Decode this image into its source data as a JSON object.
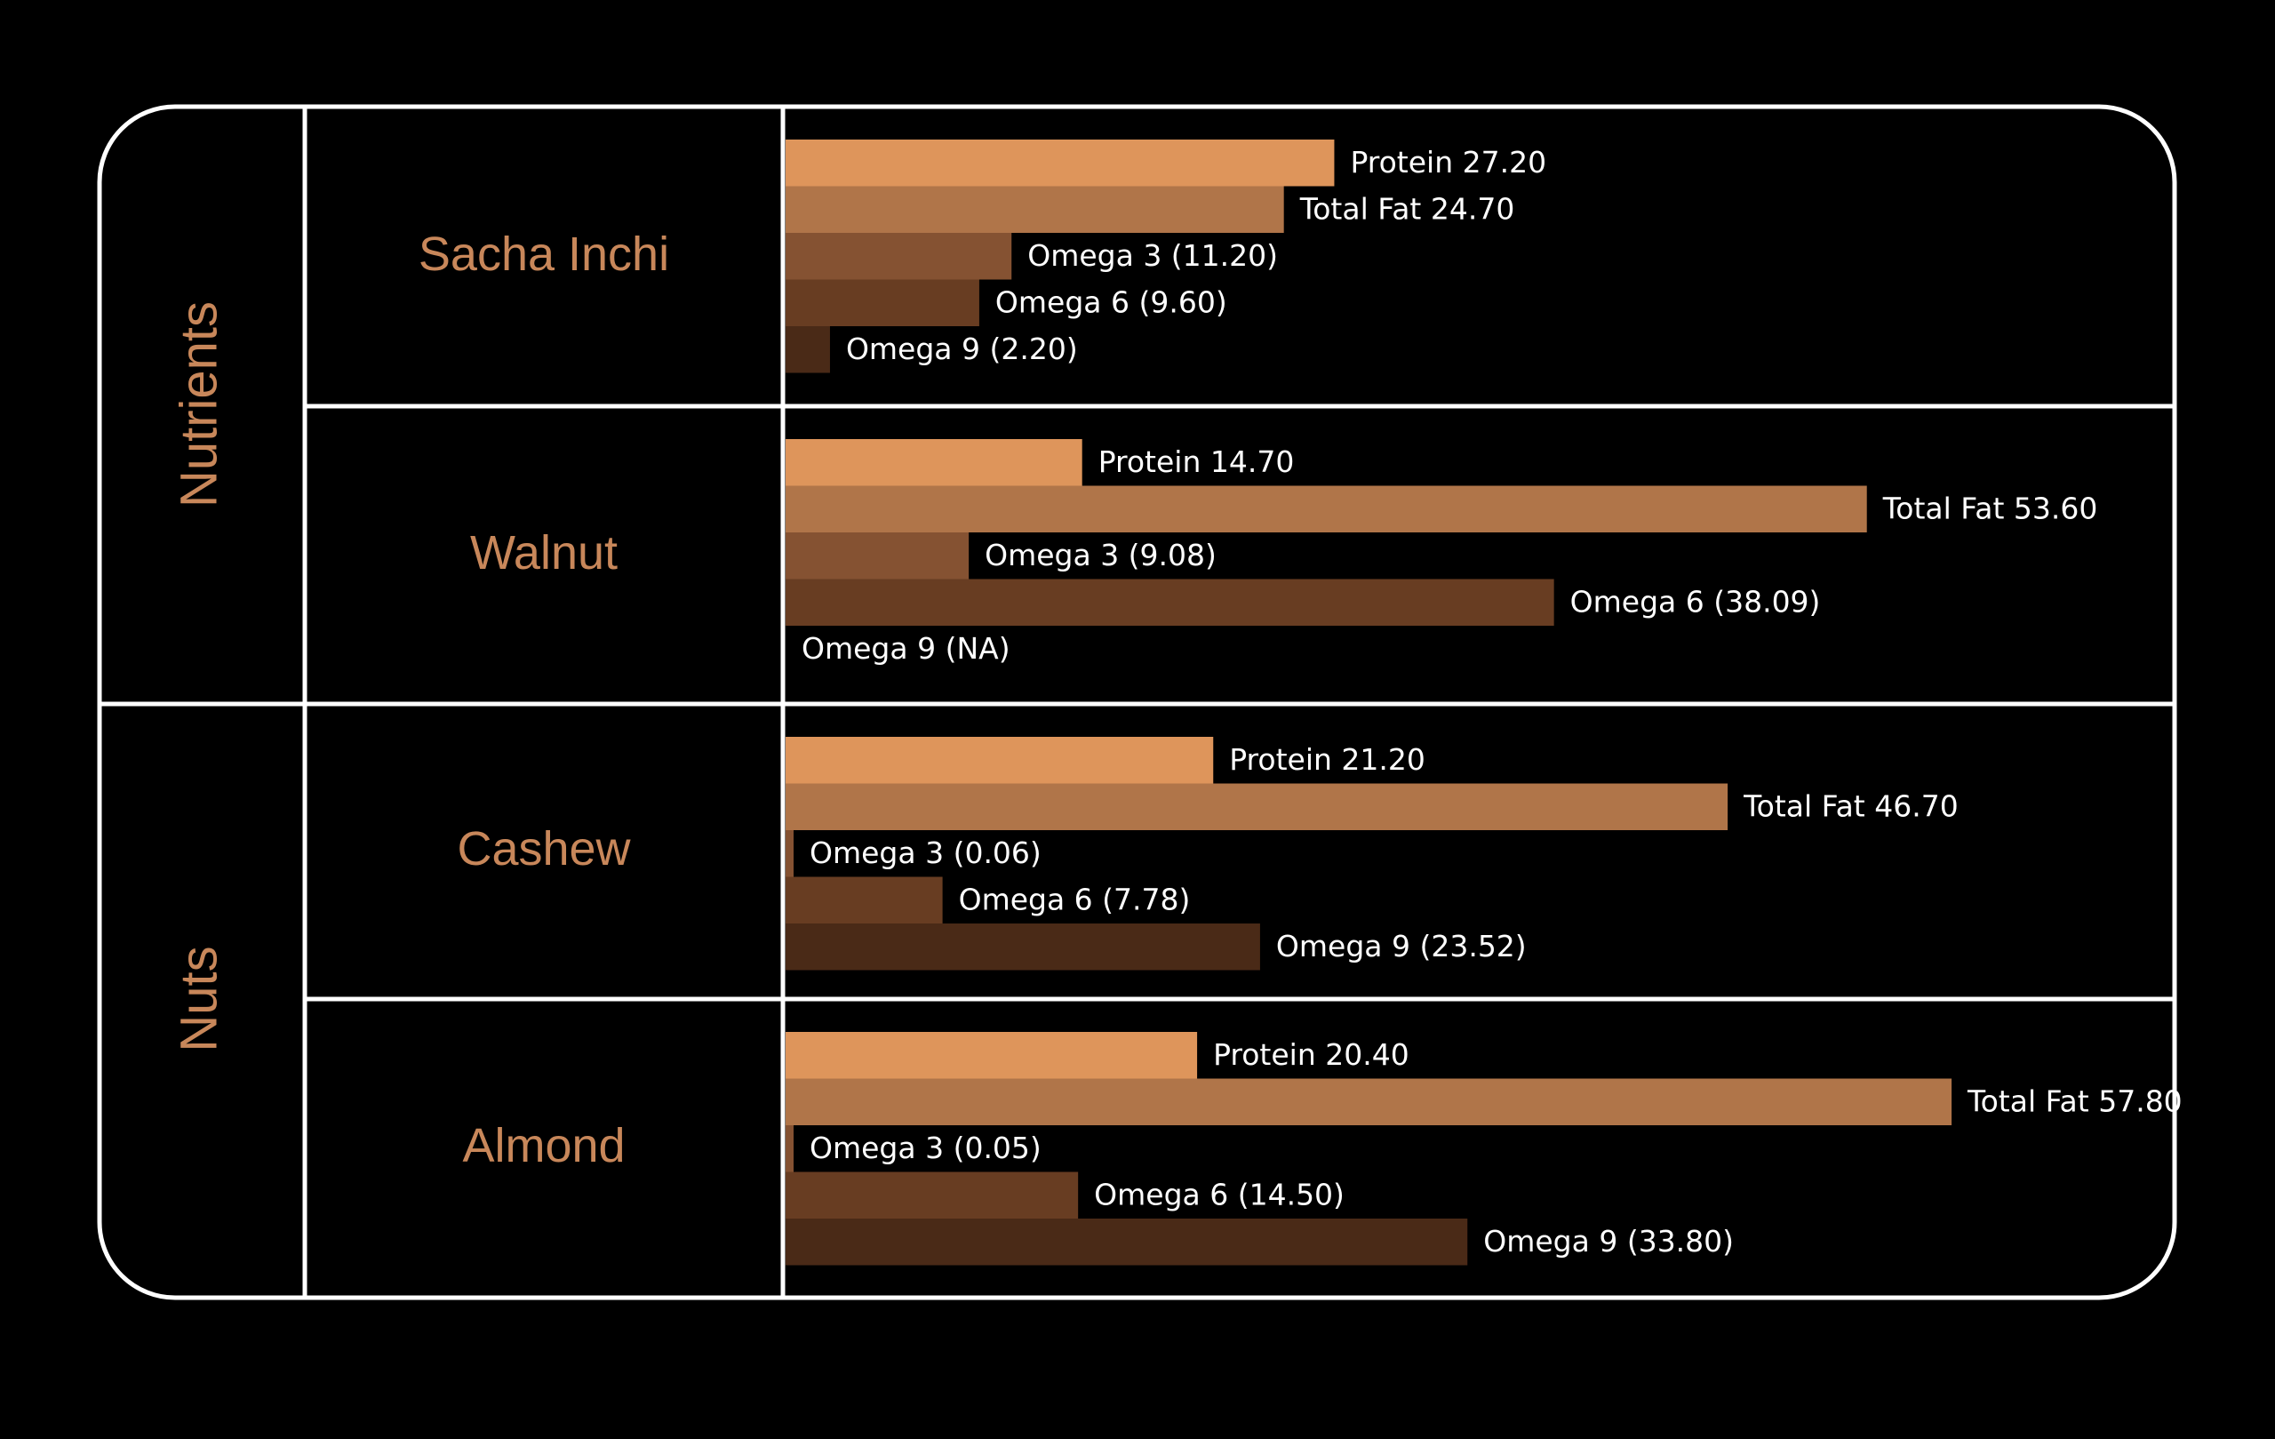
{
  "chart_data": {
    "type": "bar",
    "orientation": "horizontal",
    "group_labels": [
      "Nutrients",
      "Nuts"
    ],
    "categories": [
      "Sacha Inchi",
      "Walnut",
      "Cashew",
      "Almond"
    ],
    "series": [
      {
        "name": "Protein",
        "color": "#DE955B",
        "values": [
          27.2,
          14.7,
          21.2,
          20.4
        ],
        "labels": [
          "Protein 27.20",
          "Protein 14.70",
          "Protein 21.20",
          "Protein 20.40"
        ]
      },
      {
        "name": "Total Fat",
        "color": "#B07549",
        "values": [
          24.7,
          53.6,
          46.7,
          57.8
        ],
        "labels": [
          "Total Fat 24.70",
          "Total Fat 53.60",
          "Total Fat 46.70",
          "Total Fat 57.80"
        ]
      },
      {
        "name": "Omega 3",
        "color": "#855232",
        "values": [
          11.2,
          9.08,
          0.06,
          0.05
        ],
        "labels": [
          "Omega 3 (11.20)",
          "Omega 3 (9.08)",
          "Omega 3 (0.06)",
          "Omega 3 (0.05)"
        ]
      },
      {
        "name": "Omega 6",
        "color": "#683D22",
        "values": [
          9.6,
          38.09,
          7.78,
          14.5
        ],
        "labels": [
          "Omega 6 (9.60)",
          "Omega 6 (38.09)",
          "Omega 6 (7.78)",
          "Omega 6 (14.50)"
        ]
      },
      {
        "name": "Omega 9",
        "color": "#4A2A17",
        "values": [
          2.2,
          null,
          23.52,
          33.8
        ],
        "labels": [
          "Omega 9 (2.20)",
          "Omega 9 (NA)",
          "Omega 9 (23.52)",
          "Omega 9 (33.80)"
        ]
      }
    ]
  }
}
